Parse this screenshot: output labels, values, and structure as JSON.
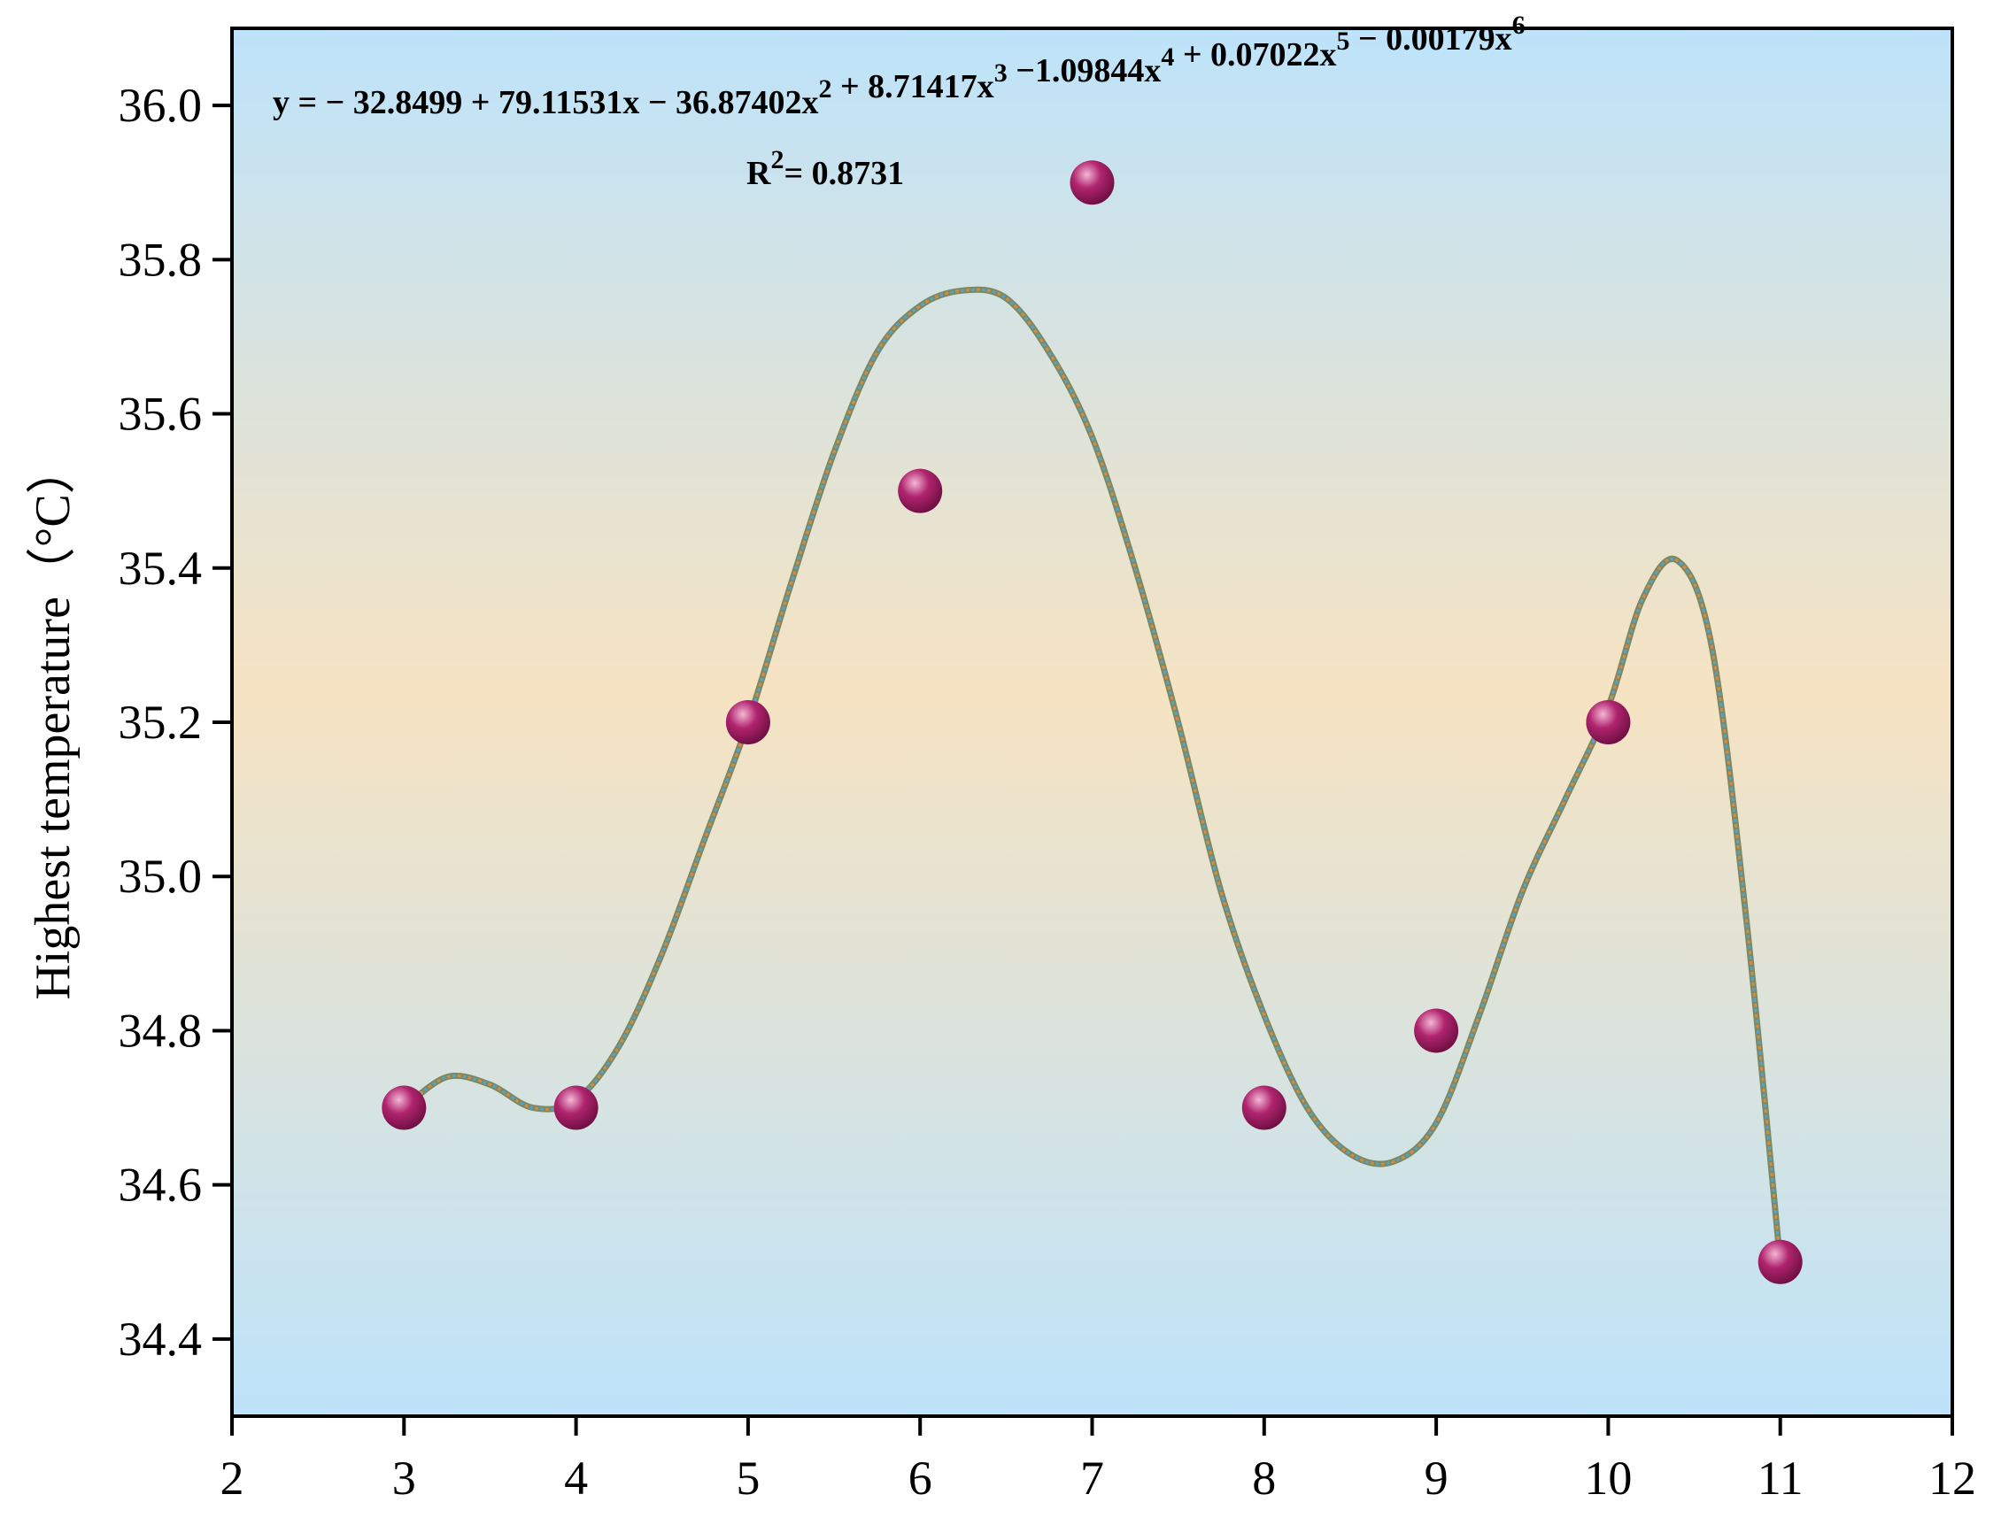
{
  "chart_data": {
    "type": "scatter",
    "ylabel": "Highest temperature（°C）",
    "xlim": [
      2,
      12
    ],
    "ylim": [
      34.3,
      36.1
    ],
    "x_ticks": [
      2,
      3,
      4,
      5,
      6,
      7,
      8,
      9,
      10,
      11,
      12
    ],
    "x_tick_labels": [
      "2",
      "3",
      "4",
      "5",
      "6",
      "7",
      "8",
      "9",
      "10",
      "11",
      "12"
    ],
    "y_ticks": [
      34.4,
      34.6,
      34.8,
      35.0,
      35.2,
      35.4,
      35.6,
      35.8,
      36.0
    ],
    "y_tick_labels": [
      "34.4",
      "34.6",
      "34.8",
      "35.0",
      "35.2",
      "35.4",
      "35.6",
      "35.8",
      "36.0"
    ],
    "points": {
      "x": [
        3,
        4,
        5,
        6,
        7,
        8,
        9,
        10,
        11
      ],
      "y": [
        34.7,
        34.7,
        35.2,
        35.5,
        35.9,
        34.7,
        34.8,
        35.2,
        34.5
      ]
    },
    "fit_curve": {
      "x": [
        3.0,
        3.25,
        3.5,
        3.75,
        4.0,
        4.25,
        4.5,
        4.75,
        5.0,
        5.25,
        5.5,
        5.75,
        6.0,
        6.25,
        6.5,
        6.75,
        7.0,
        7.25,
        7.5,
        7.75,
        8.0,
        8.25,
        8.5,
        8.75,
        9.0,
        9.25,
        9.5,
        9.75,
        10.0,
        10.2,
        10.4,
        10.6,
        10.8,
        11.0
      ],
      "y": [
        34.7,
        34.74,
        34.73,
        34.7,
        34.71,
        34.78,
        34.9,
        35.05,
        35.2,
        35.38,
        35.55,
        35.68,
        35.74,
        35.76,
        35.75,
        35.68,
        35.57,
        35.4,
        35.2,
        34.98,
        34.82,
        34.7,
        34.64,
        34.63,
        34.68,
        34.82,
        34.98,
        35.1,
        35.22,
        35.36,
        35.41,
        35.3,
        34.95,
        34.5
      ]
    },
    "equation": {
      "lhs": "y",
      "terms": [
        {
          "text": "= − 32.8499 + 79.11531x − 36.87402x",
          "sup": "2"
        },
        {
          "text": " + 8.71417x",
          "sup": "3"
        },
        {
          "text": " −1.09844x",
          "sup": "4"
        },
        {
          "text": " + 0.07022x",
          "sup": "5"
        },
        {
          "text": " − 0.00179x",
          "sup": "6"
        }
      ]
    },
    "r_squared": {
      "label": "R",
      "sup": "2",
      "value": "= 0.8731"
    },
    "colors": {
      "bg_top": "#bde3fa",
      "bg_middle": "#f6e3c2",
      "bg_bottom": "#bde3fa",
      "point": "#b0246e",
      "point_highlight": "#f4b7d6",
      "curve": "#7a8a62",
      "curve_dash_a": "#d58a4a",
      "curve_dash_b": "#5aa0c8"
    }
  }
}
